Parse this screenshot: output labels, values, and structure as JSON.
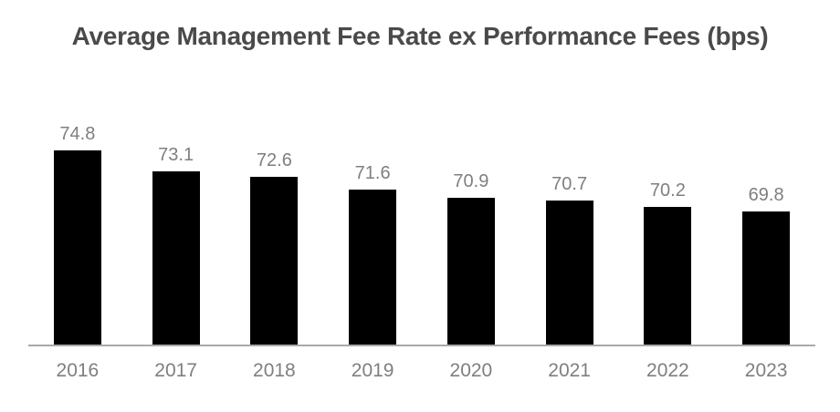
{
  "chart_data": {
    "type": "bar",
    "title": "Average Management Fee Rate ex Performance Fees (bps)",
    "categories": [
      "2016",
      "2017",
      "2018",
      "2019",
      "2020",
      "2021",
      "2022",
      "2023"
    ],
    "values": [
      74.8,
      73.1,
      72.6,
      71.6,
      70.9,
      70.7,
      70.2,
      69.8
    ],
    "data_labels": [
      "74.8",
      "73.1",
      "72.6",
      "71.6",
      "70.9",
      "70.7",
      "70.2",
      "69.8"
    ],
    "xlabel": "",
    "ylabel": "",
    "ylim": [
      59,
      76
    ],
    "grid": false,
    "legend_position": "none",
    "colors": {
      "bar": "#000000",
      "title": "#4a4a4a",
      "data_label": "#7f7f7f",
      "axis_label": "#7f7f7f",
      "axis_line": "#a9a9a9"
    }
  }
}
